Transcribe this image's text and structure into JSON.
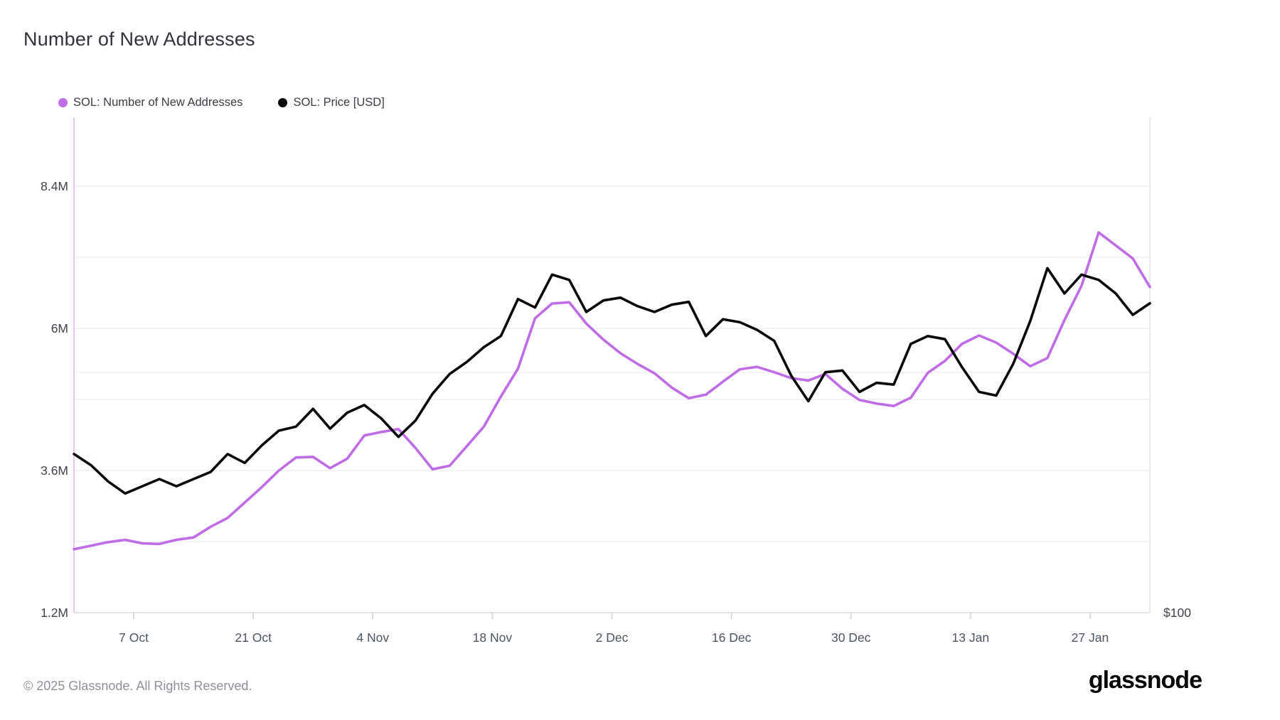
{
  "page": {
    "title": "Number of New Addresses"
  },
  "legend": {
    "items": [
      {
        "label": "SOL: Number of New Addresses",
        "color": "#bf6ce6"
      },
      {
        "label": "SOL: Price [USD]",
        "color": "#0a0a0a"
      }
    ]
  },
  "footer": {
    "copyright": "© 2025 Glassnode. All Rights Reserved.",
    "brand": "glassnode"
  },
  "chart_data": {
    "type": "line",
    "title": "Number of New Addresses",
    "grid": "horizontal-only",
    "legend_position": "top-left",
    "x_range_days": 126,
    "x": [
      "30 Sep",
      "2 Oct",
      "4 Oct",
      "6 Oct",
      "8 Oct",
      "10 Oct",
      "12 Oct",
      "14 Oct",
      "16 Oct",
      "18 Oct",
      "20 Oct",
      "22 Oct",
      "24 Oct",
      "26 Oct",
      "28 Oct",
      "30 Oct",
      "1 Nov",
      "3 Nov",
      "5 Nov",
      "7 Nov",
      "9 Nov",
      "11 Nov",
      "13 Nov",
      "15 Nov",
      "17 Nov",
      "19 Nov",
      "21 Nov",
      "23 Nov",
      "25 Nov",
      "27 Nov",
      "29 Nov",
      "1 Dec",
      "3 Dec",
      "5 Dec",
      "7 Dec",
      "9 Dec",
      "11 Dec",
      "13 Dec",
      "15 Dec",
      "17 Dec",
      "19 Dec",
      "21 Dec",
      "23 Dec",
      "25 Dec",
      "27 Dec",
      "29 Dec",
      "31 Dec",
      "2 Jan",
      "4 Jan",
      "6 Jan",
      "8 Jan",
      "10 Jan",
      "12 Jan",
      "14 Jan",
      "16 Jan",
      "18 Jan",
      "20 Jan",
      "22 Jan",
      "24 Jan",
      "26 Jan",
      "28 Jan",
      "30 Jan",
      "1 Feb",
      "3 Feb"
    ],
    "x_ticks": [
      {
        "label": "7 Oct",
        "day": 7
      },
      {
        "label": "21 Oct",
        "day": 21
      },
      {
        "label": "4 Nov",
        "day": 35
      },
      {
        "label": "18 Nov",
        "day": 49
      },
      {
        "label": "2 Dec",
        "day": 63
      },
      {
        "label": "16 Dec",
        "day": 77
      },
      {
        "label": "30 Dec",
        "day": 91
      },
      {
        "label": "13 Jan",
        "day": 105
      },
      {
        "label": "27 Jan",
        "day": 119
      }
    ],
    "left_axis": {
      "label": "Number of New Addresses",
      "scale": "linear",
      "unit": "M",
      "min": 1.2,
      "max": 9.57,
      "tick_labels": [
        "8.4M",
        "6M",
        "3.6M",
        "1.2M"
      ],
      "tick_values": [
        8.4,
        6.0,
        3.6,
        1.2
      ],
      "gridline_values": [
        8.4,
        7.2,
        6.0,
        4.8,
        3.6,
        2.4
      ]
    },
    "right_axis": {
      "label": "Price [USD]",
      "scale": "log",
      "unit": "USD",
      "tick_labels": [
        "$100"
      ],
      "tick_values": [
        100
      ],
      "gridline_values": [
        200
      ]
    },
    "series": [
      {
        "name": "SOL: Number of New Addresses",
        "axis": "left",
        "unit": "millions of addresses",
        "color": "#bf6ce6",
        "values": [
          2.27,
          2.33,
          2.39,
          2.43,
          2.37,
          2.36,
          2.43,
          2.47,
          2.65,
          2.8,
          3.06,
          3.32,
          3.6,
          3.82,
          3.83,
          3.64,
          3.8,
          4.19,
          4.25,
          4.3,
          3.98,
          3.62,
          3.68,
          4.01,
          4.34,
          4.85,
          5.32,
          6.17,
          6.42,
          6.44,
          6.08,
          5.81,
          5.58,
          5.4,
          5.24,
          5.0,
          4.82,
          4.88,
          5.1,
          5.31,
          5.35,
          5.26,
          5.16,
          5.12,
          5.23,
          4.98,
          4.79,
          4.73,
          4.69,
          4.83,
          5.25,
          5.45,
          5.74,
          5.88,
          5.76,
          5.57,
          5.36,
          5.5,
          6.14,
          6.72,
          7.62,
          7.4,
          7.18,
          6.7
        ]
      },
      {
        "name": "SOL: Price [USD]",
        "axis": "right",
        "unit": "USD",
        "color": "#0a0a0a",
        "values": [
          158,
          153,
          146,
          141,
          144,
          147,
          144,
          147,
          150,
          158,
          154,
          162,
          169,
          171,
          180,
          170,
          178,
          182,
          175,
          166,
          174,
          188,
          199,
          206,
          215,
          222,
          247,
          241,
          265,
          261,
          238,
          246,
          248,
          242,
          238,
          243,
          245,
          222,
          233,
          231,
          226,
          219,
          198,
          184,
          200,
          201,
          189,
          194,
          193,
          217,
          222,
          220,
          203,
          189,
          187,
          205,
          232,
          270,
          251,
          265,
          261,
          251,
          236,
          244
        ]
      }
    ]
  }
}
